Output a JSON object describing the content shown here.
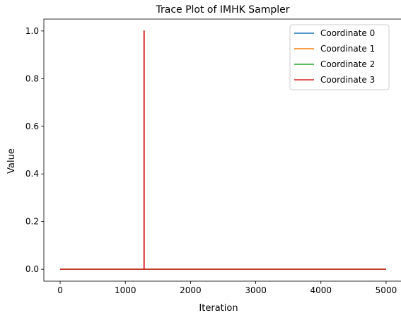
{
  "chart_data": {
    "type": "line",
    "title": "Trace Plot of IMHK Sampler",
    "xlabel": "Iteration",
    "ylabel": "Value",
    "xlim": [
      -250,
      5250
    ],
    "ylim": [
      -0.05,
      1.05
    ],
    "xticks": [
      0,
      1000,
      2000,
      3000,
      4000,
      5000
    ],
    "xtick_labels": [
      "0",
      "1000",
      "2000",
      "3000",
      "4000",
      "5000"
    ],
    "yticks": [
      0.0,
      0.2,
      0.4,
      0.6,
      0.8,
      1.0
    ],
    "ytick_labels": [
      "0.0",
      "0.2",
      "0.4",
      "0.6",
      "0.8",
      "1.0"
    ],
    "grid": false,
    "legend_position": "top-right",
    "series": [
      {
        "name": "Coordinate 0",
        "color": "#1f77b4",
        "x": [
          0,
          5000
        ],
        "y": [
          0,
          0
        ]
      },
      {
        "name": "Coordinate 1",
        "color": "#ff7f0e",
        "x": [
          0,
          5000
        ],
        "y": [
          0,
          0
        ]
      },
      {
        "name": "Coordinate 2",
        "color": "#2ca02c",
        "x": [
          0,
          5000
        ],
        "y": [
          0,
          0
        ]
      },
      {
        "name": "Coordinate 3",
        "color": "#d62728",
        "x": [
          0,
          1285,
          1285,
          1290,
          1290,
          5000
        ],
        "y": [
          0,
          0,
          1,
          1,
          0,
          0
        ]
      }
    ]
  }
}
